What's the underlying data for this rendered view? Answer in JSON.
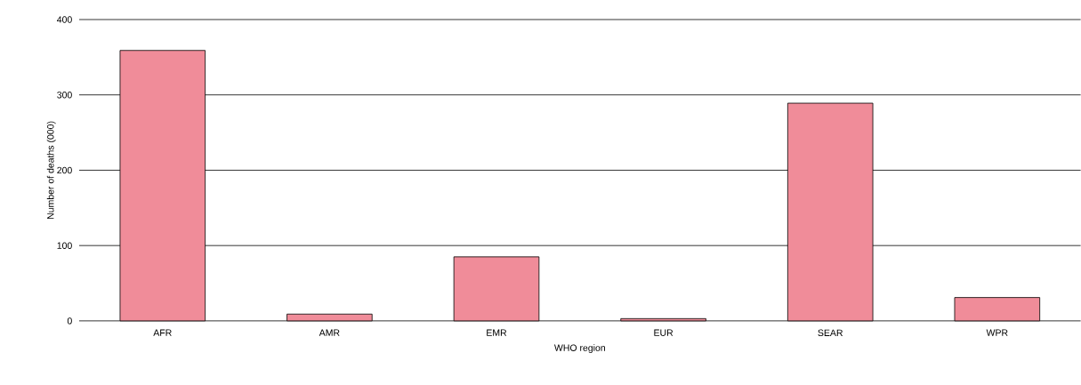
{
  "chart_data": {
    "type": "bar",
    "xlabel": "WHO region",
    "ylabel": "Number of deaths (000)",
    "categories": [
      "AFR",
      "AMR",
      "EMR",
      "EUR",
      "SEAR",
      "WPR"
    ],
    "values": [
      359,
      9,
      85,
      3,
      289,
      31
    ],
    "color": "#f08c99",
    "ylim": [
      0,
      400
    ],
    "yticks": [
      0,
      100,
      200,
      300,
      400
    ],
    "grid": "y"
  }
}
